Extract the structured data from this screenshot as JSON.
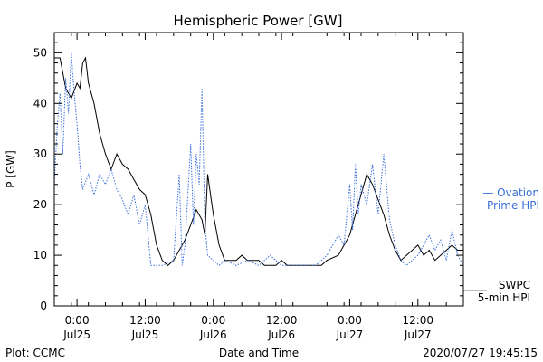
{
  "chart_data": {
    "type": "line",
    "title": "Hemispheric Power [GW]",
    "xlabel": "Date and Time",
    "ylabel": "P [GW]",
    "ylim": [
      0,
      54
    ],
    "xlim": [
      "2020-07-24T20:00",
      "2020-07-27T20:00"
    ],
    "yticks": [
      0,
      10,
      20,
      30,
      40,
      50
    ],
    "xticks": [
      {
        "t": "2020-07-25T00:00",
        "time": "0:00",
        "day": "Jul25"
      },
      {
        "t": "2020-07-25T12:00",
        "time": "12:00",
        "day": "Jul25"
      },
      {
        "t": "2020-07-26T00:00",
        "time": "0:00",
        "day": "Jul26"
      },
      {
        "t": "2020-07-26T12:00",
        "time": "12:00",
        "day": "Jul26"
      },
      {
        "t": "2020-07-27T00:00",
        "time": "0:00",
        "day": "Jul27"
      },
      {
        "t": "2020-07-27T12:00",
        "time": "12:00",
        "day": "Jul27"
      }
    ],
    "grid": false,
    "legend_position": "right",
    "series": [
      {
        "name": "SWPC 5-min HPI",
        "label_lines": [
          "SWPC",
          "5-min HPI"
        ],
        "color": "#000000",
        "style": "solid",
        "legend_level": 3,
        "points": [
          [
            "2020-07-24T20:00",
            49
          ],
          [
            "2020-07-24T21:00",
            49
          ],
          [
            "2020-07-24T22:00",
            43
          ],
          [
            "2020-07-24T23:00",
            41
          ],
          [
            "2020-07-25T00:00",
            44
          ],
          [
            "2020-07-25T00:30",
            43
          ],
          [
            "2020-07-25T01:00",
            48
          ],
          [
            "2020-07-25T01:30",
            49
          ],
          [
            "2020-07-25T02:00",
            44
          ],
          [
            "2020-07-25T03:00",
            40
          ],
          [
            "2020-07-25T04:00",
            34
          ],
          [
            "2020-07-25T05:00",
            30
          ],
          [
            "2020-07-25T06:00",
            27
          ],
          [
            "2020-07-25T07:00",
            30
          ],
          [
            "2020-07-25T08:00",
            28
          ],
          [
            "2020-07-25T09:00",
            27
          ],
          [
            "2020-07-25T10:00",
            25
          ],
          [
            "2020-07-25T11:00",
            23
          ],
          [
            "2020-07-25T12:00",
            22
          ],
          [
            "2020-07-25T13:00",
            18
          ],
          [
            "2020-07-25T14:00",
            12
          ],
          [
            "2020-07-25T15:00",
            9
          ],
          [
            "2020-07-25T16:00",
            8
          ],
          [
            "2020-07-25T17:00",
            9
          ],
          [
            "2020-07-25T18:00",
            11
          ],
          [
            "2020-07-25T19:00",
            13
          ],
          [
            "2020-07-25T20:00",
            16
          ],
          [
            "2020-07-25T21:00",
            19
          ],
          [
            "2020-07-25T22:00",
            17
          ],
          [
            "2020-07-25T22:30",
            14
          ],
          [
            "2020-07-25T23:00",
            26
          ],
          [
            "2020-07-25T23:30",
            22
          ],
          [
            "2020-07-26T00:00",
            18
          ],
          [
            "2020-07-26T01:00",
            12
          ],
          [
            "2020-07-26T02:00",
            9
          ],
          [
            "2020-07-26T03:00",
            9
          ],
          [
            "2020-07-26T04:00",
            9
          ],
          [
            "2020-07-26T05:00",
            10
          ],
          [
            "2020-07-26T06:00",
            9
          ],
          [
            "2020-07-26T08:00",
            9
          ],
          [
            "2020-07-26T09:00",
            8
          ],
          [
            "2020-07-26T11:00",
            8
          ],
          [
            "2020-07-26T12:00",
            9
          ],
          [
            "2020-07-26T13:00",
            8
          ],
          [
            "2020-07-26T16:00",
            8
          ],
          [
            "2020-07-26T19:00",
            8
          ],
          [
            "2020-07-26T20:00",
            9
          ],
          [
            "2020-07-26T22:00",
            10
          ],
          [
            "2020-07-27T00:00",
            14
          ],
          [
            "2020-07-27T01:00",
            18
          ],
          [
            "2020-07-27T02:00",
            22
          ],
          [
            "2020-07-27T03:00",
            26
          ],
          [
            "2020-07-27T04:00",
            24
          ],
          [
            "2020-07-27T05:00",
            21
          ],
          [
            "2020-07-27T06:00",
            18
          ],
          [
            "2020-07-27T07:00",
            14
          ],
          [
            "2020-07-27T08:00",
            11
          ],
          [
            "2020-07-27T09:00",
            9
          ],
          [
            "2020-07-27T10:00",
            10
          ],
          [
            "2020-07-27T11:00",
            11
          ],
          [
            "2020-07-27T12:00",
            12
          ],
          [
            "2020-07-27T13:00",
            10
          ],
          [
            "2020-07-27T14:00",
            11
          ],
          [
            "2020-07-27T15:00",
            9
          ],
          [
            "2020-07-27T16:00",
            10
          ],
          [
            "2020-07-27T17:00",
            11
          ],
          [
            "2020-07-27T18:00",
            12
          ],
          [
            "2020-07-27T19:00",
            11
          ],
          [
            "2020-07-27T20:00",
            11
          ]
        ]
      },
      {
        "name": "Ovation Prime HPI",
        "label_lines": [
          "— Ovation",
          "Prime HPI"
        ],
        "color": "#3a6fd8",
        "style": "dotted",
        "legend_level": 22,
        "points": [
          [
            "2020-07-24T20:00",
            24
          ],
          [
            "2020-07-24T20:30",
            35
          ],
          [
            "2020-07-24T21:00",
            42
          ],
          [
            "2020-07-24T21:30",
            30
          ],
          [
            "2020-07-24T22:00",
            45
          ],
          [
            "2020-07-24T22:30",
            38
          ],
          [
            "2020-07-24T23:00",
            50
          ],
          [
            "2020-07-24T23:30",
            42
          ],
          [
            "2020-07-25T00:00",
            36
          ],
          [
            "2020-07-25T00:30",
            28
          ],
          [
            "2020-07-25T01:00",
            23
          ],
          [
            "2020-07-25T02:00",
            26
          ],
          [
            "2020-07-25T03:00",
            22
          ],
          [
            "2020-07-25T04:00",
            26
          ],
          [
            "2020-07-25T05:00",
            24
          ],
          [
            "2020-07-25T06:00",
            27
          ],
          [
            "2020-07-25T07:00",
            23
          ],
          [
            "2020-07-25T08:00",
            21
          ],
          [
            "2020-07-25T09:00",
            18
          ],
          [
            "2020-07-25T10:00",
            22
          ],
          [
            "2020-07-25T11:00",
            16
          ],
          [
            "2020-07-25T12:00",
            20
          ],
          [
            "2020-07-25T13:00",
            8
          ],
          [
            "2020-07-25T15:00",
            8
          ],
          [
            "2020-07-25T17:00",
            9
          ],
          [
            "2020-07-25T18:00",
            26
          ],
          [
            "2020-07-25T18:30",
            8
          ],
          [
            "2020-07-25T19:00",
            12
          ],
          [
            "2020-07-25T20:00",
            32
          ],
          [
            "2020-07-25T20:30",
            16
          ],
          [
            "2020-07-25T21:00",
            30
          ],
          [
            "2020-07-25T21:30",
            24
          ],
          [
            "2020-07-25T22:00",
            43
          ],
          [
            "2020-07-25T22:30",
            16
          ],
          [
            "2020-07-25T23:00",
            10
          ],
          [
            "2020-07-26T00:00",
            9
          ],
          [
            "2020-07-26T01:00",
            8
          ],
          [
            "2020-07-26T02:00",
            9
          ],
          [
            "2020-07-26T04:00",
            8
          ],
          [
            "2020-07-26T06:00",
            9
          ],
          [
            "2020-07-26T08:00",
            8
          ],
          [
            "2020-07-26T10:00",
            10
          ],
          [
            "2020-07-26T12:00",
            8
          ],
          [
            "2020-07-26T14:00",
            8
          ],
          [
            "2020-07-26T18:00",
            8
          ],
          [
            "2020-07-26T19:00",
            9
          ],
          [
            "2020-07-26T20:00",
            10
          ],
          [
            "2020-07-26T21:00",
            12
          ],
          [
            "2020-07-26T22:00",
            14
          ],
          [
            "2020-07-26T23:00",
            12
          ],
          [
            "2020-07-27T00:00",
            24
          ],
          [
            "2020-07-27T00:30",
            15
          ],
          [
            "2020-07-27T01:00",
            28
          ],
          [
            "2020-07-27T01:30",
            18
          ],
          [
            "2020-07-27T02:00",
            24
          ],
          [
            "2020-07-27T03:00",
            20
          ],
          [
            "2020-07-27T04:00",
            28
          ],
          [
            "2020-07-27T05:00",
            18
          ],
          [
            "2020-07-27T06:00",
            30
          ],
          [
            "2020-07-27T07:00",
            17
          ],
          [
            "2020-07-27T08:00",
            12
          ],
          [
            "2020-07-27T09:00",
            9
          ],
          [
            "2020-07-27T10:00",
            8
          ],
          [
            "2020-07-27T11:00",
            9
          ],
          [
            "2020-07-27T12:00",
            10
          ],
          [
            "2020-07-27T13:00",
            12
          ],
          [
            "2020-07-27T14:00",
            14
          ],
          [
            "2020-07-27T15:00",
            11
          ],
          [
            "2020-07-27T16:00",
            13
          ],
          [
            "2020-07-27T17:00",
            9
          ],
          [
            "2020-07-27T18:00",
            15
          ],
          [
            "2020-07-27T19:00",
            10
          ],
          [
            "2020-07-27T20:00",
            8
          ]
        ]
      }
    ]
  },
  "footer": {
    "plot_credit": "Plot: CCMC",
    "timestamp": "2020/07/27 19:45:15"
  }
}
